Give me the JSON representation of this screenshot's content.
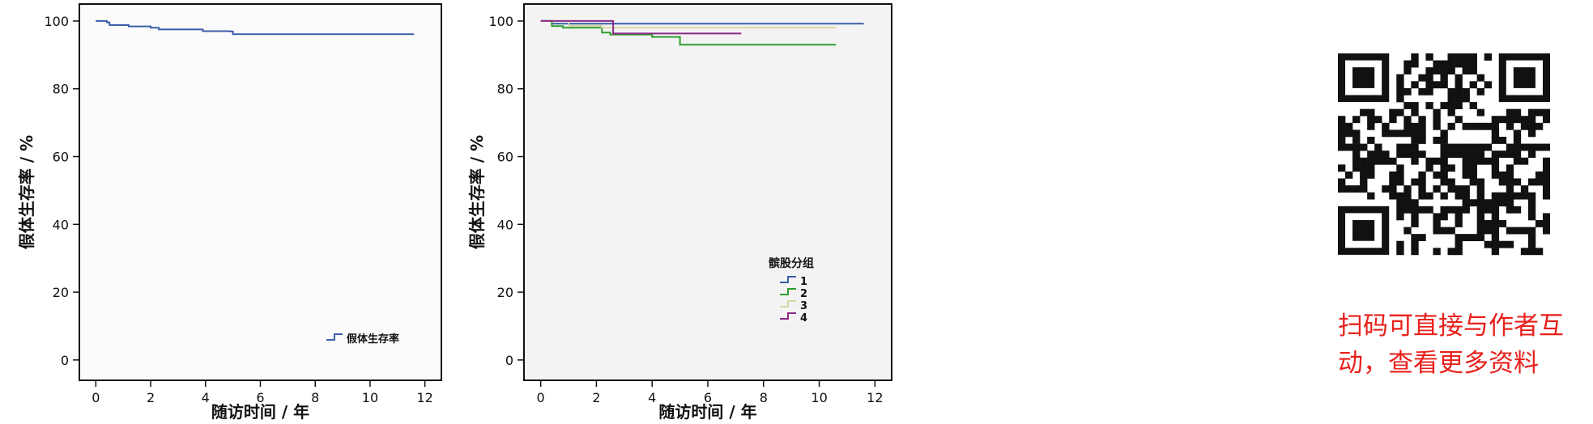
{
  "chart_data": [
    {
      "type": "line",
      "step": true,
      "title": "",
      "xlabel": "随访时间 / 年",
      "ylabel": "假体生存率 / %",
      "xlim": [
        -0.6,
        12.6
      ],
      "ylim": [
        -6,
        105
      ],
      "xticks": [
        0,
        2,
        4,
        6,
        8,
        10,
        12
      ],
      "yticks": [
        0,
        20,
        40,
        60,
        80,
        100
      ],
      "grid": false,
      "legend": {
        "position": "bottom-right"
      },
      "series": [
        {
          "name": "假体生存率",
          "color": "#3b5ea8",
          "points": [
            [
              0,
              100
            ],
            [
              0.4,
              99.6
            ],
            [
              0.5,
              98.8
            ],
            [
              1.2,
              98.4
            ],
            [
              2.0,
              98.0
            ],
            [
              2.3,
              97.5
            ],
            [
              3.9,
              97.0
            ],
            [
              4.9,
              96.9
            ],
            [
              5.0,
              96.1
            ],
            [
              11.6,
              96.1
            ]
          ]
        }
      ]
    },
    {
      "type": "line",
      "step": true,
      "title": "",
      "xlabel": "随访时间 / 年",
      "ylabel": "假体生存率 / %",
      "xlim": [
        -0.6,
        12.6
      ],
      "ylim": [
        -6,
        105
      ],
      "xticks": [
        0,
        2,
        4,
        6,
        8,
        10,
        12
      ],
      "yticks": [
        0,
        20,
        40,
        60,
        80,
        100
      ],
      "grid": false,
      "legend": {
        "title": "髌股分组",
        "position": "bottom-right"
      },
      "series": [
        {
          "name": "1",
          "color": "#3b5ea8",
          "points": [
            [
              0,
              100
            ],
            [
              0.4,
              99.2
            ],
            [
              11.6,
              99.2
            ]
          ]
        },
        {
          "name": "2",
          "color": "#2e9e2e",
          "points": [
            [
              0,
              100
            ],
            [
              0.4,
              98.5
            ],
            [
              0.8,
              98.0
            ],
            [
              2.2,
              96.6
            ],
            [
              2.5,
              96.0
            ],
            [
              4.0,
              95.3
            ],
            [
              5.0,
              93.0
            ],
            [
              10.6,
              93.0
            ]
          ]
        },
        {
          "name": "3",
          "color": "#d8d6a4",
          "points": [
            [
              0,
              100
            ],
            [
              1.0,
              98.6
            ],
            [
              2.2,
              98.0
            ],
            [
              10.6,
              98.0
            ]
          ]
        },
        {
          "name": "4",
          "color": "#8b2a8b",
          "points": [
            [
              0,
              100
            ],
            [
              2.6,
              100
            ],
            [
              2.6,
              96.3
            ],
            [
              7.2,
              96.3
            ]
          ]
        }
      ]
    }
  ],
  "qr": {
    "caption_line1": "扫码可直接与作者互",
    "caption_line2": "动，查看更多资料"
  }
}
